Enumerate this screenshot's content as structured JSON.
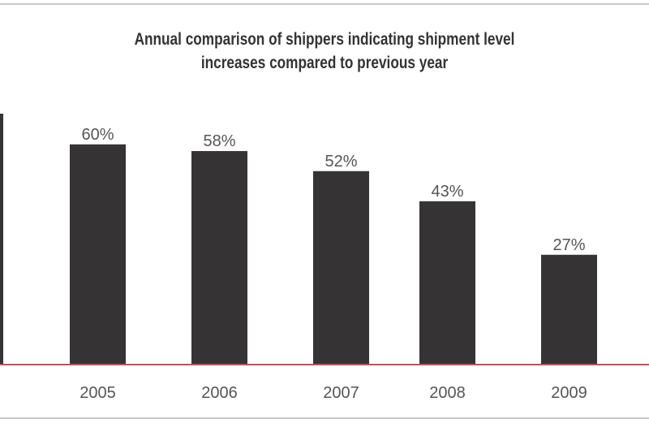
{
  "chart_data": {
    "type": "bar",
    "title": "Annual comparison of shippers indicating shipment level increases compared to previous year",
    "title_lines": [
      "Annual comparison of shippers indicating shipment level",
      "increases compared to previous year"
    ],
    "categories": [
      "2005",
      "2006",
      "2007",
      "2008",
      "2009"
    ],
    "values": [
      60,
      58,
      52,
      43,
      27
    ],
    "data_labels": [
      "60%",
      "58%",
      "52%",
      "43%",
      "27%"
    ],
    "xlabel": "",
    "ylabel": "",
    "grid": false,
    "bar_color": "#353334",
    "baseline_color": "#c0505a"
  }
}
